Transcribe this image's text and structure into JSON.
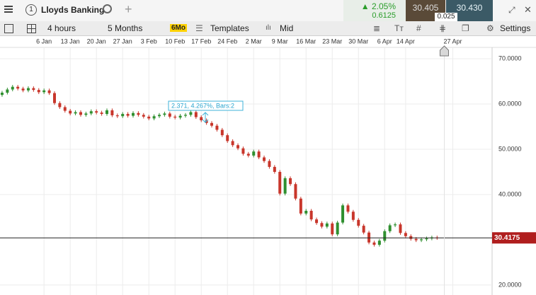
{
  "header": {
    "window_number": "1",
    "instrument": "Lloyds Banking",
    "change_percent": "2.05%",
    "change": "0.6125",
    "sell": "30.405",
    "buy": "30.430",
    "spread": "0.025"
  },
  "toolbar": {
    "interval": "4 hours",
    "range": "5 Months",
    "range_badge": "6Mo",
    "templates": "Templates",
    "price_type": "Mid",
    "settings": "Settings"
  },
  "chart_data": {
    "type": "candlestick",
    "up_color": "#2f8f2f",
    "down_color": "#c8362b",
    "grid": true,
    "xlim": [
      -0.4,
      93.5
    ],
    "xticks": [
      {
        "value": 8,
        "label": "6 Jan"
      },
      {
        "value": 13,
        "label": "13 Jan"
      },
      {
        "value": 18,
        "label": "20 Jan"
      },
      {
        "value": 23,
        "label": "27 Jan"
      },
      {
        "value": 28,
        "label": "3 Feb"
      },
      {
        "value": 33,
        "label": "10 Feb"
      },
      {
        "value": 38,
        "label": "17 Feb"
      },
      {
        "value": 43,
        "label": "24 Feb"
      },
      {
        "value": 48,
        "label": "2 Mar"
      },
      {
        "value": 53,
        "label": "9 Mar"
      },
      {
        "value": 58,
        "label": "16 Mar"
      },
      {
        "value": 63,
        "label": "23 Mar"
      },
      {
        "value": 68,
        "label": "30 Mar"
      },
      {
        "value": 73,
        "label": "6 Apr"
      },
      {
        "value": 77,
        "label": "14 Apr"
      },
      {
        "value": 86,
        "label": "27 Apr"
      }
    ],
    "ylim": [
      17.8,
      72.5
    ],
    "yticks": [
      {
        "value": 70,
        "label": "70.0000"
      },
      {
        "value": 60,
        "label": "60.0000"
      },
      {
        "value": 50,
        "label": "50.0000"
      },
      {
        "value": 40,
        "label": "40.0000"
      },
      {
        "value": 20,
        "label": "20.0000"
      }
    ],
    "current_price": 30.4175,
    "measure_label": "2.371, 4.267%, Bars:2",
    "open": [
      62.0,
      62.5,
      63.2,
      63.8,
      63.4,
      63.0,
      63.5,
      63.1,
      62.6,
      63.0,
      62.4,
      60.2,
      59.3,
      58.5,
      57.9,
      58.2,
      57.6,
      57.9,
      58.4,
      58.1,
      57.8,
      58.6,
      57.5,
      57.3,
      57.8,
      57.4,
      58.0,
      57.6,
      57.2,
      56.8,
      57.3,
      57.6,
      57.9,
      57.2,
      57.0,
      57.4,
      57.6,
      58.2,
      57.1,
      56.4,
      55.8,
      55.2,
      54.3,
      53.1,
      51.8,
      50.9,
      50.2,
      49.0,
      48.6,
      49.5,
      48.2,
      47.4,
      46.1,
      45.0,
      40.2,
      43.6,
      42.3,
      39.1,
      35.8,
      36.4,
      34.5,
      33.7,
      32.9,
      33.6,
      31.2,
      33.8,
      37.6,
      36.2,
      34.4,
      33.1,
      31.6,
      29.4,
      28.9,
      29.8,
      31.9,
      33.2,
      33.4,
      31.5,
      30.8,
      30.2,
      29.9,
      30.1,
      30.3,
      30.5
    ],
    "high": [
      62.9,
      63.6,
      64.2,
      64.2,
      63.8,
      63.9,
      63.9,
      63.5,
      63.4,
      63.4,
      62.8,
      60.6,
      59.7,
      58.9,
      58.6,
      58.6,
      58.3,
      58.8,
      58.8,
      58.5,
      59.0,
      59.0,
      57.9,
      58.2,
      58.2,
      58.4,
      58.4,
      58.0,
      57.6,
      57.7,
      58.0,
      58.3,
      58.3,
      57.6,
      57.8,
      58.0,
      58.6,
      58.6,
      57.5,
      56.8,
      56.2,
      55.6,
      54.7,
      53.5,
      52.2,
      51.3,
      50.6,
      49.4,
      49.9,
      49.9,
      48.6,
      47.8,
      46.5,
      45.4,
      44.0,
      44.0,
      42.7,
      39.5,
      36.8,
      36.8,
      34.9,
      34.1,
      34.0,
      34.0,
      34.2,
      38.0,
      38.0,
      36.6,
      34.8,
      33.5,
      32.0,
      29.8,
      30.2,
      32.3,
      33.6,
      33.8,
      33.8,
      31.9,
      31.2,
      30.6,
      30.5,
      30.7,
      30.9,
      30.9
    ],
    "low": [
      61.6,
      62.1,
      62.8,
      63.0,
      62.6,
      62.6,
      62.7,
      62.2,
      62.2,
      62.0,
      59.8,
      58.9,
      58.1,
      57.5,
      57.5,
      57.2,
      57.2,
      57.5,
      57.7,
      57.4,
      57.4,
      57.1,
      56.9,
      56.9,
      57.0,
      57.0,
      57.2,
      56.8,
      56.4,
      56.4,
      56.9,
      57.2,
      56.8,
      56.6,
      56.6,
      57.0,
      57.2,
      56.7,
      56.0,
      55.4,
      54.8,
      53.9,
      52.7,
      51.4,
      50.5,
      49.8,
      48.6,
      48.2,
      48.2,
      47.8,
      47.0,
      45.7,
      44.6,
      39.8,
      39.8,
      41.9,
      38.7,
      35.4,
      35.4,
      34.1,
      33.3,
      32.5,
      32.5,
      30.8,
      30.8,
      33.4,
      35.8,
      34.0,
      32.7,
      31.2,
      29.0,
      28.5,
      28.5,
      29.4,
      31.5,
      32.8,
      31.1,
      30.4,
      29.8,
      29.5,
      29.5,
      29.7,
      29.9,
      30.0
    ],
    "close": [
      62.5,
      63.2,
      63.8,
      63.4,
      63.0,
      63.5,
      63.1,
      62.6,
      63.0,
      62.4,
      60.2,
      59.3,
      58.5,
      57.9,
      58.2,
      57.6,
      57.9,
      58.4,
      58.1,
      57.8,
      58.6,
      57.5,
      57.3,
      57.8,
      57.4,
      58.0,
      57.6,
      57.2,
      56.8,
      57.3,
      57.6,
      57.9,
      57.2,
      57.0,
      57.4,
      57.6,
      58.2,
      57.1,
      56.4,
      55.8,
      55.2,
      54.3,
      53.1,
      51.8,
      50.9,
      50.2,
      49.0,
      48.6,
      49.5,
      48.2,
      47.4,
      46.1,
      45.0,
      40.2,
      43.6,
      42.3,
      39.1,
      35.8,
      36.4,
      34.5,
      33.7,
      32.9,
      33.6,
      31.2,
      33.8,
      37.6,
      36.2,
      34.4,
      33.1,
      31.6,
      29.4,
      28.9,
      29.8,
      31.9,
      33.2,
      33.4,
      31.5,
      30.8,
      30.2,
      29.9,
      30.1,
      30.3,
      30.5,
      30.4
    ]
  }
}
